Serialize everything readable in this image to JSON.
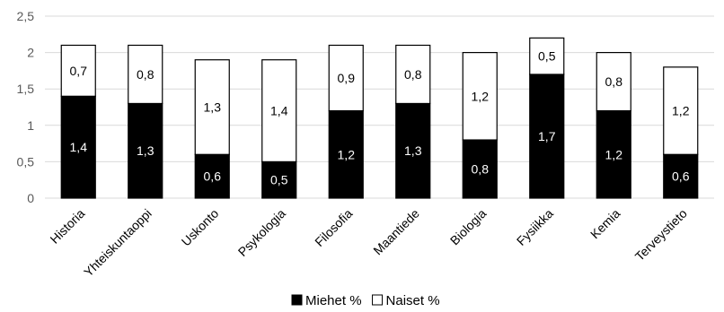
{
  "chart_data": {
    "type": "bar",
    "stacked": true,
    "title": "",
    "xlabel": "",
    "ylabel": "",
    "ylim": [
      0,
      2.5
    ],
    "yticks": [
      0,
      0.5,
      1,
      1.5,
      2,
      2.5
    ],
    "ytick_labels": [
      "0",
      "0,5",
      "1",
      "1,5",
      "2",
      "2,5"
    ],
    "grid": true,
    "legend_position": "bottom",
    "categories": [
      "Historia",
      "Yhteiskuntaoppi",
      "Uskonto",
      "Psykologia",
      "Filosofia",
      "Maantiede",
      "Biologia",
      "Fysiikka",
      "Kemia",
      "Terveystieto"
    ],
    "series": [
      {
        "name": "Miehet %",
        "color": "#000000",
        "values": [
          1.4,
          1.3,
          0.6,
          0.5,
          1.2,
          1.3,
          0.8,
          1.7,
          1.2,
          0.6
        ],
        "labels": [
          "1,4",
          "1,3",
          "0,6",
          "0,5",
          "1,2",
          "1,3",
          "0,8",
          "1,7",
          "1,2",
          "0,6"
        ]
      },
      {
        "name": "Naiset %",
        "color": "#ffffff",
        "values": [
          0.7,
          0.8,
          1.3,
          1.4,
          0.9,
          0.8,
          1.2,
          0.5,
          0.8,
          1.2
        ],
        "labels": [
          "0,7",
          "0,8",
          "1,3",
          "1,4",
          "0,9",
          "0,8",
          "1,2",
          "0,5",
          "0,8",
          "1,2"
        ]
      }
    ]
  }
}
